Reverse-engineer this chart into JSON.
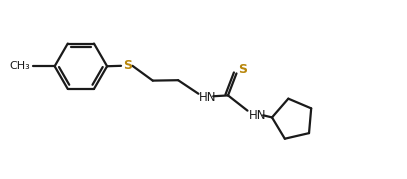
{
  "background": "#ffffff",
  "line_color": "#1a1a1a",
  "text_color": "#1a1a1a",
  "sulfur_color": "#b8860b",
  "line_width": 1.6,
  "font_size": 8.5,
  "figsize": [
    4.07,
    1.79
  ],
  "dpi": 100,
  "xlim": [
    0,
    9.5
  ],
  "ylim": [
    0,
    4.2
  ]
}
